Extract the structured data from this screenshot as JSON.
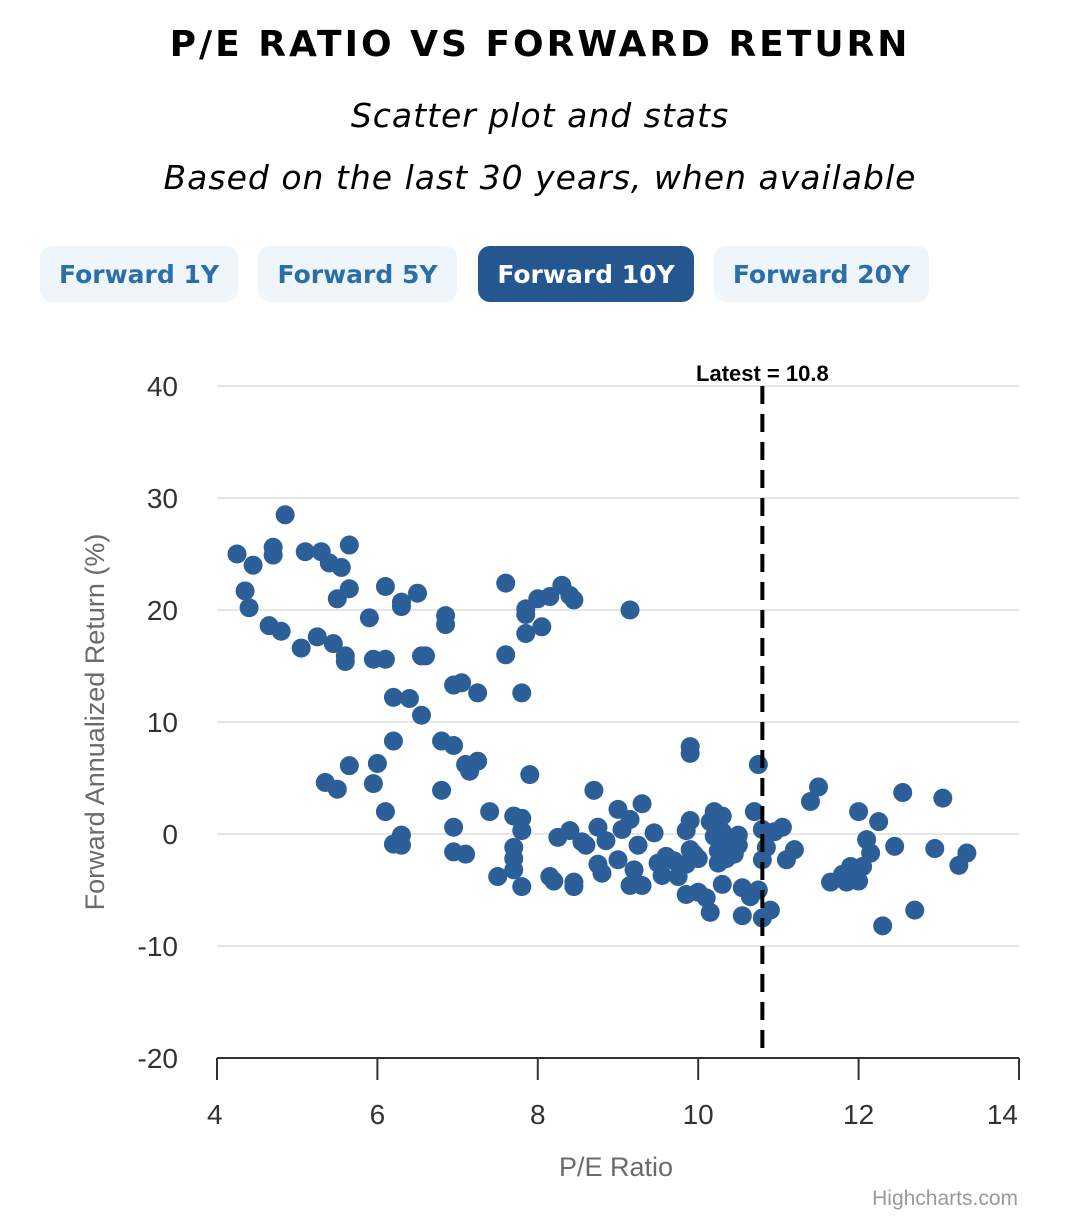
{
  "header": {
    "title": "P/E RATIO VS FORWARD RETURN",
    "subtitle": "Scatter plot and stats",
    "subtitle2": "Based on the last 30 years, when available"
  },
  "tabs": [
    {
      "label": "Forward 1Y",
      "active": false
    },
    {
      "label": "Forward 5Y",
      "active": false
    },
    {
      "label": "Forward 10Y",
      "active": true
    },
    {
      "label": "Forward 20Y",
      "active": false
    }
  ],
  "credit": "Highcharts.com",
  "colors": {
    "point": "#2c5f98",
    "tab_active_bg": "#24568f",
    "tab_bg": "#eef6fb",
    "tab_text": "#2d6ea8",
    "grid": "#e6e6e6",
    "marker_line": "#000000"
  },
  "chart_data": {
    "type": "scatter",
    "title": "P/E RATIO VS FORWARD RETURN",
    "xlabel": "P/E Ratio",
    "ylabel": "Forward Annualized Return (%)",
    "xlim": [
      4,
      14
    ],
    "ylim": [
      -20,
      40
    ],
    "xticks": [
      4,
      6,
      8,
      10,
      12,
      14
    ],
    "yticks": [
      -20,
      -10,
      0,
      10,
      20,
      30,
      40
    ],
    "grid": true,
    "latest": {
      "x": 10.8,
      "label": "Latest = 10.8"
    },
    "series": [
      {
        "name": "Forward 10Y",
        "points": [
          [
            4.25,
            25.0
          ],
          [
            4.35,
            21.7
          ],
          [
            4.45,
            24.0
          ],
          [
            4.4,
            20.2
          ],
          [
            4.7,
            25.6
          ],
          [
            4.7,
            24.9
          ],
          [
            4.85,
            28.5
          ],
          [
            4.65,
            18.6
          ],
          [
            4.8,
            18.1
          ],
          [
            5.05,
            16.6
          ],
          [
            5.1,
            25.2
          ],
          [
            5.3,
            25.2
          ],
          [
            5.4,
            24.2
          ],
          [
            5.55,
            23.8
          ],
          [
            5.65,
            25.8
          ],
          [
            5.65,
            21.9
          ],
          [
            5.5,
            21.0
          ],
          [
            5.25,
            17.6
          ],
          [
            5.45,
            17.0
          ],
          [
            5.6,
            15.9
          ],
          [
            5.6,
            15.4
          ],
          [
            5.9,
            19.3
          ],
          [
            6.1,
            22.1
          ],
          [
            6.3,
            20.7
          ],
          [
            6.3,
            20.3
          ],
          [
            6.5,
            21.5
          ],
          [
            5.95,
            15.6
          ],
          [
            6.1,
            15.6
          ],
          [
            6.55,
            15.9
          ],
          [
            6.6,
            15.9
          ],
          [
            6.2,
            12.2
          ],
          [
            6.4,
            12.1
          ],
          [
            6.55,
            10.6
          ],
          [
            6.8,
            8.3
          ],
          [
            6.95,
            7.9
          ],
          [
            6.95,
            13.3
          ],
          [
            7.05,
            13.5
          ],
          [
            7.25,
            12.6
          ],
          [
            6.85,
            19.5
          ],
          [
            6.85,
            18.7
          ],
          [
            7.6,
            22.4
          ],
          [
            7.85,
            20.1
          ],
          [
            7.85,
            19.6
          ],
          [
            7.85,
            17.9
          ],
          [
            8.0,
            21.0
          ],
          [
            8.05,
            18.5
          ],
          [
            8.15,
            21.2
          ],
          [
            8.3,
            22.2
          ],
          [
            8.4,
            21.3
          ],
          [
            8.45,
            20.9
          ],
          [
            9.15,
            20.0
          ],
          [
            7.6,
            16.0
          ],
          [
            7.8,
            12.6
          ],
          [
            7.1,
            6.2
          ],
          [
            7.15,
            5.6
          ],
          [
            7.25,
            6.5
          ],
          [
            7.9,
            5.3
          ],
          [
            5.35,
            4.6
          ],
          [
            5.5,
            4.0
          ],
          [
            5.65,
            6.1
          ],
          [
            5.95,
            4.5
          ],
          [
            6.0,
            6.3
          ],
          [
            6.1,
            2.0
          ],
          [
            6.2,
            -0.9
          ],
          [
            6.3,
            -0.1
          ],
          [
            6.3,
            -1.0
          ],
          [
            6.2,
            8.3
          ],
          [
            6.8,
            3.9
          ],
          [
            6.95,
            0.6
          ],
          [
            6.95,
            -1.6
          ],
          [
            7.1,
            -1.8
          ],
          [
            7.4,
            2.0
          ],
          [
            7.5,
            -3.8
          ],
          [
            7.7,
            1.6
          ],
          [
            7.8,
            1.4
          ],
          [
            7.7,
            -1.2
          ],
          [
            7.7,
            -2.2
          ],
          [
            7.7,
            -3.2
          ],
          [
            7.8,
            0.3
          ],
          [
            7.8,
            -4.7
          ],
          [
            8.15,
            -3.8
          ],
          [
            8.2,
            -4.2
          ],
          [
            8.25,
            -0.3
          ],
          [
            8.4,
            0.3
          ],
          [
            8.45,
            -4.3
          ],
          [
            8.45,
            -4.7
          ],
          [
            8.55,
            -0.7
          ],
          [
            8.6,
            -1.0
          ],
          [
            8.7,
            3.9
          ],
          [
            8.75,
            0.6
          ],
          [
            8.8,
            -3.5
          ],
          [
            8.75,
            -2.7
          ],
          [
            8.85,
            -0.6
          ],
          [
            9.0,
            2.2
          ],
          [
            9.0,
            -2.3
          ],
          [
            9.05,
            0.4
          ],
          [
            9.15,
            1.3
          ],
          [
            9.15,
            -4.6
          ],
          [
            9.2,
            -3.2
          ],
          [
            9.25,
            -1.0
          ],
          [
            9.3,
            -4.6
          ],
          [
            9.3,
            2.7
          ],
          [
            9.45,
            0.1
          ],
          [
            9.5,
            -2.6
          ],
          [
            9.55,
            -3.7
          ],
          [
            9.6,
            -2.0
          ],
          [
            9.7,
            -2.4
          ],
          [
            9.75,
            -3.8
          ],
          [
            9.85,
            0.3
          ],
          [
            9.85,
            -2.7
          ],
          [
            9.85,
            -5.4
          ],
          [
            9.9,
            1.2
          ],
          [
            9.9,
            -1.4
          ],
          [
            9.9,
            7.8
          ],
          [
            9.9,
            7.2
          ],
          [
            9.95,
            -1.8
          ],
          [
            10.0,
            -2.2
          ],
          [
            10.0,
            -5.2
          ],
          [
            10.1,
            -5.7
          ],
          [
            10.15,
            -7.0
          ],
          [
            10.15,
            1.1
          ],
          [
            10.2,
            -0.2
          ],
          [
            10.2,
            2.0
          ],
          [
            10.25,
            -1.5
          ],
          [
            10.25,
            -2.6
          ],
          [
            10.3,
            0.2
          ],
          [
            10.3,
            1.6
          ],
          [
            10.3,
            -4.5
          ],
          [
            10.35,
            -2.2
          ],
          [
            10.4,
            -0.6
          ],
          [
            10.45,
            -1.8
          ],
          [
            10.5,
            -0.1
          ],
          [
            10.5,
            -1.0
          ],
          [
            10.55,
            -4.8
          ],
          [
            10.55,
            -7.3
          ],
          [
            10.65,
            -5.6
          ],
          [
            10.7,
            2.0
          ],
          [
            10.75,
            6.2
          ],
          [
            10.75,
            -5.0
          ],
          [
            10.8,
            -7.5
          ],
          [
            10.8,
            0.4
          ],
          [
            10.8,
            -2.3
          ],
          [
            10.85,
            -1.2
          ],
          [
            10.9,
            -6.8
          ],
          [
            10.95,
            0.2
          ],
          [
            11.05,
            0.6
          ],
          [
            11.1,
            -2.3
          ],
          [
            11.2,
            -1.4
          ],
          [
            11.4,
            2.9
          ],
          [
            11.5,
            4.2
          ],
          [
            11.65,
            -4.3
          ],
          [
            11.8,
            -3.6
          ],
          [
            11.85,
            -4.3
          ],
          [
            11.9,
            -2.9
          ],
          [
            11.95,
            -3.8
          ],
          [
            12.0,
            -4.2
          ],
          [
            12.0,
            2.0
          ],
          [
            12.05,
            -2.9
          ],
          [
            12.1,
            -0.5
          ],
          [
            12.15,
            -1.7
          ],
          [
            12.25,
            1.1
          ],
          [
            12.3,
            -8.2
          ],
          [
            12.45,
            -1.1
          ],
          [
            12.55,
            3.7
          ],
          [
            12.7,
            -6.8
          ],
          [
            12.95,
            -1.3
          ],
          [
            13.05,
            3.2
          ],
          [
            13.25,
            -2.8
          ],
          [
            13.35,
            -1.7
          ]
        ]
      }
    ]
  }
}
